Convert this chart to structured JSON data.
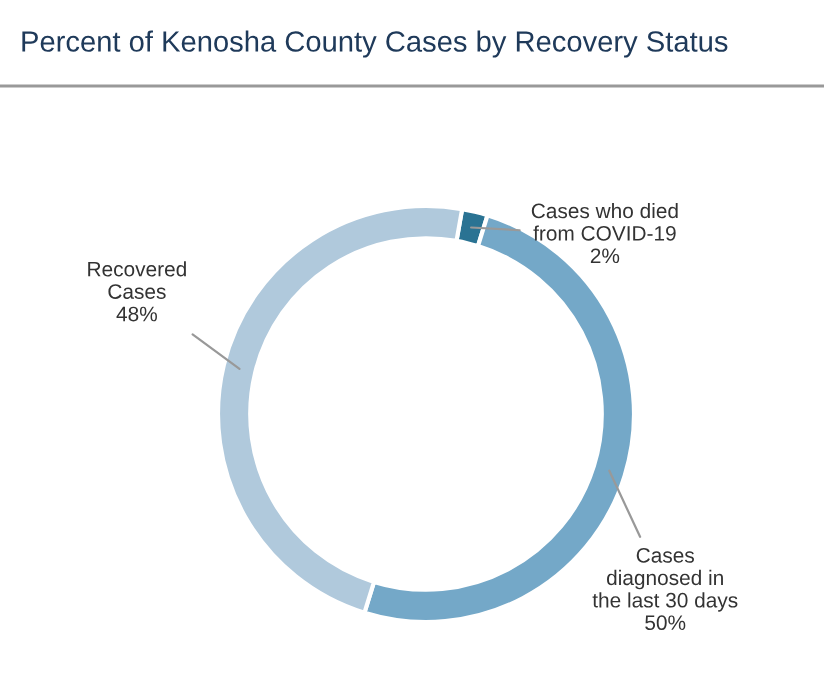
{
  "chart_data": {
    "type": "donut",
    "title": "Percent of Kenosha County Cases by Recovery Status",
    "categories": [
      "Cases who died\nfrom COVID-19",
      "Cases\ndiagnosed in\nthe last 30 days",
      "Recovered\nCases"
    ],
    "values": [
      2,
      50,
      48
    ],
    "colors": [
      "#2a7393",
      "#74a8c8",
      "#b0c9dc"
    ],
    "value_labels": [
      "2%",
      "50%",
      "48%"
    ],
    "legend": false
  }
}
